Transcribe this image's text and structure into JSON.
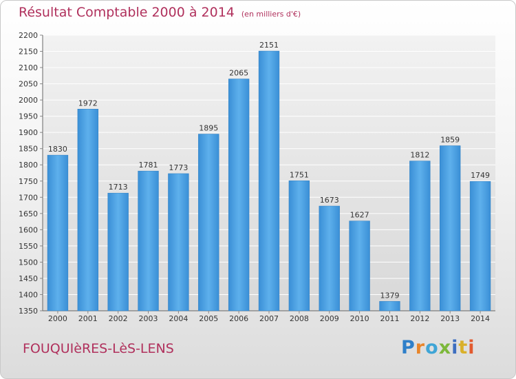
{
  "chart_data": {
    "type": "bar",
    "title": "Résultat Comptable 2000 à 2014",
    "subtitle": "(en milliers d'€)",
    "categories": [
      "2000",
      "2001",
      "2002",
      "2003",
      "2004",
      "2005",
      "2006",
      "2007",
      "2008",
      "2009",
      "2010",
      "2011",
      "2012",
      "2013",
      "2014"
    ],
    "values": [
      1830,
      1972,
      1713,
      1781,
      1773,
      1895,
      2065,
      2151,
      1751,
      1673,
      1627,
      1379,
      1812,
      1859,
      1749
    ],
    "ylim": [
      1350,
      2200
    ],
    "yticks": [
      1350,
      1400,
      1450,
      1500,
      1550,
      1600,
      1650,
      1700,
      1750,
      1800,
      1850,
      1900,
      1950,
      2000,
      2050,
      2100,
      2150,
      2200
    ],
    "xlabel": "",
    "ylabel": "",
    "grid": true,
    "bar_color": "#4a9fe0"
  },
  "commune": "FOUQUIèRES-LèS-LENS",
  "brand": "Proxiti",
  "brand_letters": [
    "P",
    "r",
    "o",
    "x",
    "i",
    "t",
    "i"
  ]
}
